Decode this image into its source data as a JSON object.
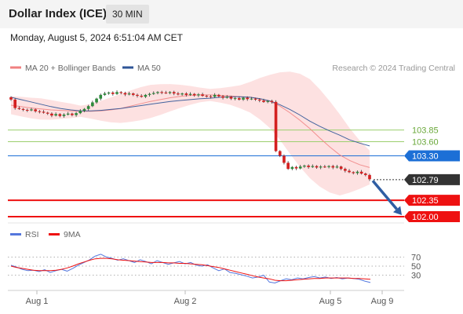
{
  "header": {
    "title": "Dollar Index (ICE)",
    "interval": "30 MIN"
  },
  "timestamp": "Monday, August 5, 2024 6:51:04 AM CET",
  "legend": [
    {
      "name": "MA 20 + Bollinger Bands",
      "color": "#f08080"
    },
    {
      "name": "MA 50",
      "color": "#2f5597"
    }
  ],
  "copyright": "Research © 2024 Trading Central",
  "chart_data": [
    {
      "type": "line",
      "subtype": "candlestick",
      "x_ticks": [
        "Aug 1",
        "Aug 2",
        "Aug 5",
        "Aug 9"
      ],
      "ylim": [
        101.9,
        104.95
      ],
      "candles_close": [
        104.5,
        104.32,
        104.3,
        104.28,
        104.27,
        104.29,
        104.25,
        104.24,
        104.22,
        104.2,
        104.16,
        104.19,
        104.15,
        104.18,
        104.2,
        104.17,
        104.21,
        104.26,
        104.3,
        104.36,
        104.44,
        104.52,
        104.6,
        104.63,
        104.65,
        104.62,
        104.66,
        104.64,
        104.61,
        104.63,
        104.6,
        104.58,
        104.56,
        104.6,
        104.62,
        104.64,
        104.66,
        104.65,
        104.64,
        104.66,
        104.63,
        104.61,
        104.63,
        104.6,
        104.62,
        104.59,
        104.61,
        104.58,
        104.57,
        104.56,
        104.6,
        104.57,
        104.54,
        104.56,
        104.52,
        104.53,
        104.5,
        104.54,
        104.51,
        104.52,
        104.5,
        104.48,
        104.45,
        104.47,
        104.45,
        103.4,
        103.3,
        103.15,
        103.02,
        103.06,
        103.03,
        103.07,
        103.09,
        103.06,
        103.08,
        103.05,
        103.07,
        103.06,
        103.08,
        103.05,
        103.07,
        103.02,
        102.98,
        102.95,
        102.93,
        102.96,
        102.92,
        102.89,
        102.8
      ],
      "series": [
        {
          "name": "MA 20 + Bollinger Bands",
          "values": [
            104.38,
            104.35,
            104.32,
            104.3,
            104.28,
            104.27,
            104.26,
            104.25,
            104.25,
            104.26,
            104.28,
            104.31,
            104.36,
            104.41,
            104.46,
            104.5,
            104.54,
            104.57,
            104.59,
            104.6,
            104.6,
            104.59,
            104.58,
            104.56,
            104.55,
            104.52,
            104.46,
            104.36,
            104.22,
            104.06,
            103.88,
            103.68,
            103.49,
            103.32,
            103.2,
            103.11,
            103.05
          ]
        },
        {
          "name": "MA 50",
          "values": [
            104.55,
            104.5,
            104.45,
            104.4,
            104.35,
            104.31,
            104.28,
            104.26,
            104.26,
            104.27,
            104.29,
            104.31,
            104.34,
            104.37,
            104.4,
            104.43,
            104.46,
            104.48,
            104.5,
            104.52,
            104.53,
            104.55,
            104.56,
            104.56,
            104.55,
            104.52,
            104.47,
            104.39,
            104.29,
            104.17,
            104.04,
            103.93,
            103.83,
            103.74,
            103.64,
            103.57,
            103.51
          ]
        }
      ],
      "levels": [
        {
          "value": 103.85,
          "label": "103.85",
          "kind": "resistance"
        },
        {
          "value": 103.6,
          "label": "103.60",
          "kind": "resistance"
        },
        {
          "value": 103.3,
          "label": "103.30",
          "kind": "pivot"
        },
        {
          "value": 102.79,
          "label": "102.79",
          "kind": "last-price"
        },
        {
          "value": 102.35,
          "label": "102.35",
          "kind": "support"
        },
        {
          "value": 102.0,
          "label": "102.00",
          "kind": "support"
        }
      ],
      "colors": {
        "up": "#2e8b3c",
        "down": "#d42020",
        "band": "#fcd7d7",
        "pivot": "#1c6fd6",
        "resistance": "#9ccf6e",
        "support": "#ee1111",
        "last": "#333333",
        "arrow": "#2f5ea3"
      }
    },
    {
      "type": "line",
      "legend": [
        {
          "name": "RSI",
          "color": "#5577dd"
        },
        {
          "name": "9MA",
          "color": "#ee1111"
        }
      ],
      "ylim": [
        0,
        100
      ],
      "y_ticks": [
        "70",
        "50",
        "30"
      ],
      "series": [
        {
          "name": "RSI",
          "values": [
            52,
            48,
            43,
            40,
            41,
            38,
            42,
            36,
            40,
            43,
            39,
            45,
            52,
            58,
            64,
            72,
            76,
            70,
            67,
            63,
            66,
            62,
            58,
            64,
            60,
            55,
            62,
            58,
            54,
            57,
            60,
            55,
            58,
            52,
            50,
            53,
            46,
            40,
            44,
            36,
            34,
            31,
            28,
            24,
            26,
            30,
            15,
            13,
            18,
            22,
            20,
            24,
            22,
            25,
            27,
            24,
            26,
            23,
            25,
            22,
            24,
            23,
            21,
            17,
            14
          ]
        },
        {
          "name": "9MA",
          "values": [
            50,
            47,
            45,
            43,
            41,
            40,
            40,
            40,
            41,
            43,
            46,
            50,
            55,
            59,
            63,
            66,
            67,
            67,
            66,
            64,
            63,
            62,
            61,
            60,
            59,
            58,
            58,
            58,
            57,
            57,
            56,
            56,
            55,
            54,
            53,
            51,
            49,
            47,
            44,
            41,
            38,
            35,
            32,
            29,
            26,
            24,
            22,
            19,
            18,
            18,
            19,
            20,
            21,
            22,
            23,
            23,
            24,
            24,
            24,
            24,
            24,
            23,
            23,
            22,
            21
          ]
        }
      ]
    }
  ]
}
